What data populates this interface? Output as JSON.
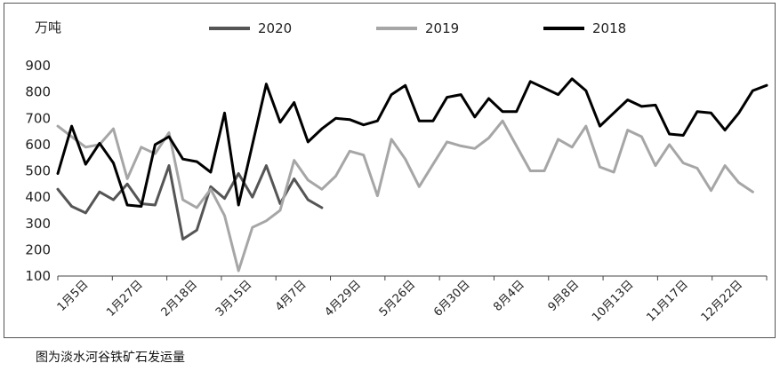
{
  "caption": "图为淡水河谷铁矿石发运量",
  "chart_data": {
    "type": "line",
    "unit_label": "万吨",
    "ylim": [
      100,
      900
    ],
    "yticks": [
      100,
      200,
      300,
      400,
      500,
      600,
      700,
      800,
      900
    ],
    "grid": false,
    "legend_position": "top",
    "x_tick_labels": [
      "1月5日",
      "1月27日",
      "2月18日",
      "3月15日",
      "4月7日",
      "4月29日",
      "5月26日",
      "6月30日",
      "8月4日",
      "9月8日",
      "10月13日",
      "11月17日",
      "12月22日"
    ],
    "x_tick_week_index": [
      0,
      3,
      6,
      10,
      13,
      16,
      20,
      25,
      30,
      35,
      40,
      45,
      50
    ],
    "x_week_count": 52,
    "series": [
      {
        "name": "2020",
        "color": "#555555",
        "values": [
          430,
          365,
          340,
          420,
          390,
          450,
          375,
          370,
          520,
          240,
          275,
          440,
          395,
          490,
          400,
          520,
          375,
          470,
          390,
          360
        ]
      },
      {
        "name": "2019",
        "color": "#a6a6a6",
        "values": [
          670,
          630,
          590,
          600,
          660,
          470,
          590,
          565,
          645,
          390,
          360,
          430,
          330,
          120,
          285,
          310,
          350,
          540,
          465,
          430,
          480,
          575,
          560,
          405,
          620,
          545,
          440,
          525,
          610,
          595,
          585,
          625,
          690,
          595,
          500,
          500,
          620,
          590,
          670,
          515,
          495,
          655,
          630,
          520,
          600,
          530,
          510,
          425,
          520,
          455,
          420
        ]
      },
      {
        "name": "2018",
        "color": "#000000",
        "values": [
          490,
          670,
          525,
          605,
          530,
          370,
          365,
          600,
          630,
          545,
          535,
          495,
          720,
          370,
          600,
          830,
          685,
          760,
          610,
          660,
          700,
          695,
          675,
          690,
          790,
          825,
          690,
          690,
          780,
          790,
          705,
          775,
          725,
          725,
          840,
          815,
          790,
          850,
          805,
          670,
          720,
          770,
          745,
          750,
          640,
          635,
          725,
          720,
          655,
          720,
          805,
          825
        ]
      }
    ]
  }
}
